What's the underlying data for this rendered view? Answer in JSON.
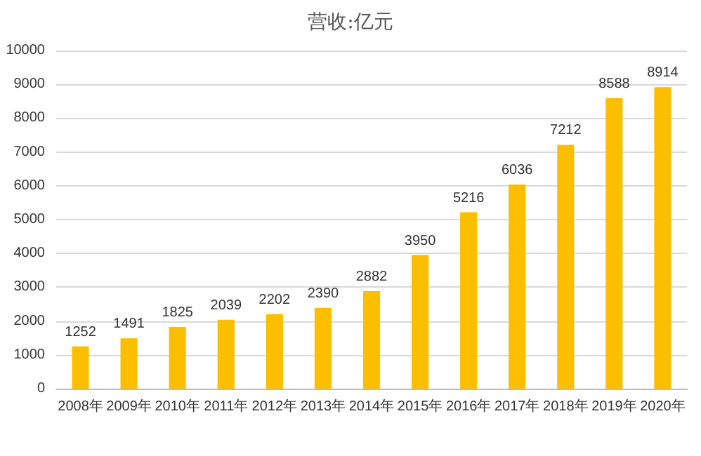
{
  "chart_data": {
    "type": "bar",
    "title": "营收:亿元",
    "categories": [
      "2008年",
      "2009年",
      "2010年",
      "2011年",
      "2012年",
      "2013年",
      "2014年",
      "2015年",
      "2016年",
      "2017年",
      "2018年",
      "2019年",
      "2020年"
    ],
    "values": [
      1252,
      1491,
      1825,
      2039,
      2202,
      2390,
      2882,
      3950,
      5216,
      6036,
      7212,
      8588,
      8914
    ],
    "color": "#fbbf00",
    "ylim": [
      0,
      10000
    ],
    "yticks": [
      0,
      1000,
      2000,
      3000,
      4000,
      5000,
      6000,
      7000,
      8000,
      9000,
      10000
    ],
    "grid": "y",
    "data_labels": true
  }
}
